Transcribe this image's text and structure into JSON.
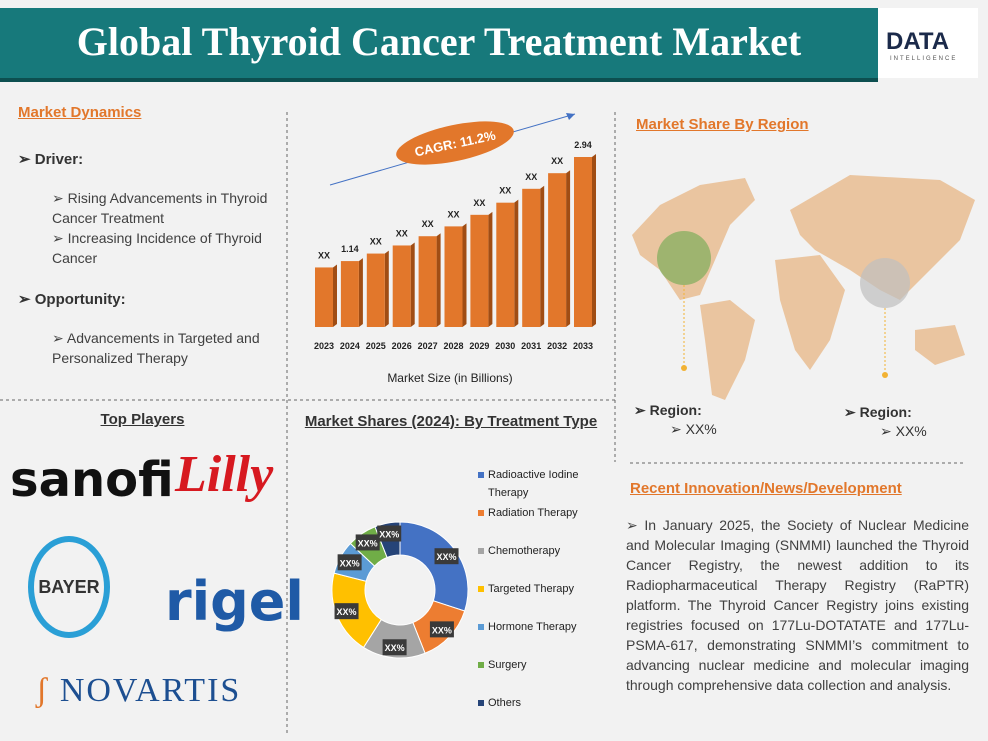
{
  "header": {
    "title": "Global Thyroid Cancer Treatment Market",
    "logo": "DATA",
    "logo_sub": "INTELLIGENCE"
  },
  "market_dynamics": {
    "title": "Market Dynamics",
    "driver": "Driver:",
    "driver_items": [
      "Rising Advancements in Thyroid Cancer Treatment",
      "Increasing Incidence of Thyroid Cancer"
    ],
    "opportunity": "Opportunity:",
    "opportunity_items": [
      "Advancements in Targeted and Personalized Therapy"
    ]
  },
  "chart_data": [
    {
      "type": "bar",
      "categories": [
        "2023",
        "2024",
        "2025",
        "2026",
        "2027",
        "2028",
        "2029",
        "2030",
        "2031",
        "2032",
        "2033"
      ],
      "values": [
        1.03,
        1.14,
        1.27,
        1.41,
        1.57,
        1.74,
        1.94,
        2.15,
        2.39,
        2.66,
        2.94
      ],
      "value_labels": [
        "XX",
        "1.14",
        "XX",
        "XX",
        "XX",
        "XX",
        "XX",
        "XX",
        "XX",
        "XX",
        "2.94"
      ],
      "annotation": "CAGR: 11.2%",
      "xlabel": "Market Size (in Billions)",
      "color": "#e2772b"
    },
    {
      "type": "pie",
      "title": "Market Shares (2024): By Treatment Type",
      "categories": [
        "Radioactive Iodine Therapy",
        "Radiation Therapy",
        "Chemotherapy",
        "Targeted Therapy",
        "Hormone Therapy",
        "Surgery",
        "Others"
      ],
      "values": [
        30,
        14,
        15,
        20,
        8,
        7,
        6
      ],
      "value_labels": [
        "XX%",
        "XX%",
        "XX%",
        "XX%",
        "XX%",
        "XX%",
        "XX%"
      ],
      "colors": [
        "#4472c4",
        "#ed7d31",
        "#a5a5a5",
        "#ffc000",
        "#5b9bd5",
        "#70ad47",
        "#264478"
      ]
    }
  ],
  "region": {
    "title": "Market Share By Region",
    "items": [
      {
        "label": "Region:",
        "value": "XX%"
      },
      {
        "label": "Region:",
        "value": "XX%"
      }
    ]
  },
  "players": {
    "title": "Top Players",
    "logos": [
      "sanofi",
      "Lilly",
      "BAYER",
      "rigel",
      "NOVARTIS"
    ]
  },
  "news": {
    "title": "Recent Innovation/News/Development",
    "text": "In January 2025, the Society of Nuclear Medicine and Molecular Imaging (SNMMI) launched the Thyroid Cancer Registry, the newest addition to its Radiopharmaceutical Therapy Registry (RaPTR) platform. The Thyroid Cancer Registry joins existing registries focused on 177Lu-DOTATATE and 177Lu-PSMA-617, demonstrating SNMMI’s commitment to advancing nuclear medicine and molecular imaging through comprehensive data collection and analysis."
  }
}
